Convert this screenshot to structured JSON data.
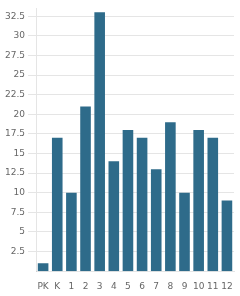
{
  "chart_data": {
    "type": "bar",
    "categories": [
      "PK",
      "K",
      "1",
      "2",
      "3",
      "4",
      "5",
      "6",
      "7",
      "8",
      "9",
      "10",
      "11",
      "12"
    ],
    "values": [
      1,
      17,
      10,
      21,
      33,
      14,
      18,
      17,
      13,
      19,
      10,
      18,
      17,
      9
    ],
    "color": "#2e6b8a",
    "ylim": [
      0,
      33.5
    ],
    "yticks": [
      2.5,
      5,
      7.5,
      10,
      12.5,
      15,
      17.5,
      20,
      22.5,
      25,
      27.5,
      30,
      32.5
    ],
    "grid": true
  }
}
